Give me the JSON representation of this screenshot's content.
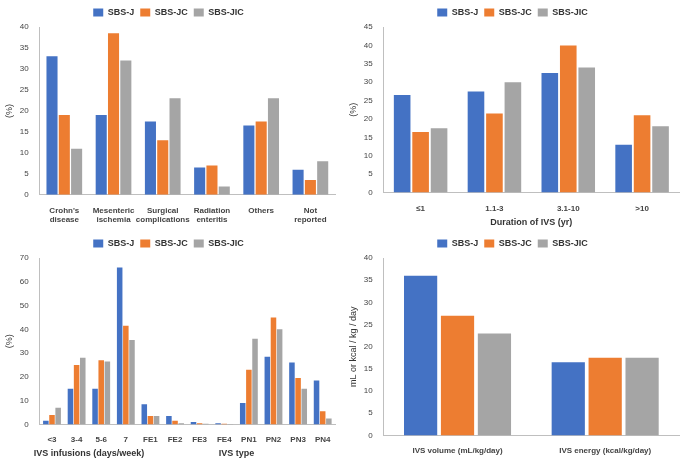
{
  "chart_data": [
    {
      "type": "bar",
      "y_label": "(%)",
      "categories": [
        "Crohn's disease",
        "Mesenteric ischemia",
        "Surgical complications",
        "Radiation enteritis",
        "Others",
        "Not reported"
      ],
      "series": [
        {
          "name": "SBS-J",
          "color": "#4472c4",
          "values": [
            33,
            19,
            17.5,
            6.5,
            16.5,
            6
          ]
        },
        {
          "name": "SBS-JC",
          "color": "#ed7d31",
          "values": [
            19,
            38.5,
            13,
            7,
            17.5,
            3.5
          ]
        },
        {
          "name": "SBS-JIC",
          "color": "#a5a5a5",
          "values": [
            11,
            32,
            23,
            2,
            23,
            8
          ]
        }
      ],
      "ylim": [
        0,
        40
      ],
      "yticks": [
        0,
        5,
        10,
        15,
        20,
        25,
        30,
        35,
        40
      ],
      "grid": false,
      "legend": "top"
    },
    {
      "type": "bar",
      "y_label": "(%)",
      "x_label": "Duration of IVS (yr)",
      "categories": [
        "≤1",
        "1.1-3",
        "3.1-10",
        ">10"
      ],
      "series": [
        {
          "name": "SBS-J",
          "color": "#4472c4",
          "values": [
            26.5,
            27.5,
            32.5,
            13
          ]
        },
        {
          "name": "SBS-JC",
          "color": "#ed7d31",
          "values": [
            16.5,
            21.5,
            40,
            21
          ]
        },
        {
          "name": "SBS-JIC",
          "color": "#a5a5a5",
          "values": [
            17.5,
            30,
            34,
            18
          ]
        }
      ],
      "ylim": [
        0,
        45
      ],
      "yticks": [
        0,
        5,
        10,
        15,
        20,
        25,
        30,
        35,
        40,
        45
      ],
      "grid": false,
      "legend": "top"
    },
    {
      "type": "bar",
      "y_label": "(%)",
      "x_label": [
        "IVS infusions (days/week)",
        "IVS type"
      ],
      "categories": [
        "<3",
        "3-4",
        "5-6",
        "7",
        "FE1",
        "FE2",
        "FE3",
        "FE4",
        "PN1",
        "PN2",
        "PN3",
        "PN4"
      ],
      "series": [
        {
          "name": "SBS-J",
          "color": "#4472c4",
          "values": [
            1.5,
            15,
            15,
            66,
            8.5,
            3.5,
            1,
            0.5,
            9,
            28.5,
            26,
            18.5
          ]
        },
        {
          "name": "SBS-JC",
          "color": "#ed7d31",
          "values": [
            4,
            25,
            27,
            41.5,
            3.5,
            1.5,
            0.5,
            0.3,
            23,
            45,
            19.5,
            5.5
          ]
        },
        {
          "name": "SBS-JIC",
          "color": "#a5a5a5",
          "values": [
            7,
            28,
            26.5,
            35.5,
            3.5,
            0.5,
            0.3,
            0.2,
            36,
            40,
            15,
            2.5
          ]
        }
      ],
      "ylim": [
        0,
        70
      ],
      "yticks": [
        0,
        10,
        20,
        30,
        40,
        50,
        60,
        70
      ],
      "grid": false,
      "legend": "top"
    },
    {
      "type": "bar",
      "y_label": "mL or kcal / kg / day",
      "categories": [
        "IVS volume (mL/kg/day)",
        "IVS energy (kcal/kg/day)"
      ],
      "series": [
        {
          "name": "SBS-J",
          "color": "#4472c4",
          "values": [
            36,
            16.5
          ]
        },
        {
          "name": "SBS-JC",
          "color": "#ed7d31",
          "values": [
            27,
            17.5
          ]
        },
        {
          "name": "SBS-JIC",
          "color": "#a5a5a5",
          "values": [
            23,
            17.5
          ]
        }
      ],
      "ylim": [
        0,
        40
      ],
      "yticks": [
        0,
        5,
        10,
        15,
        20,
        25,
        30,
        35,
        40
      ],
      "grid": false,
      "legend": "top"
    }
  ]
}
